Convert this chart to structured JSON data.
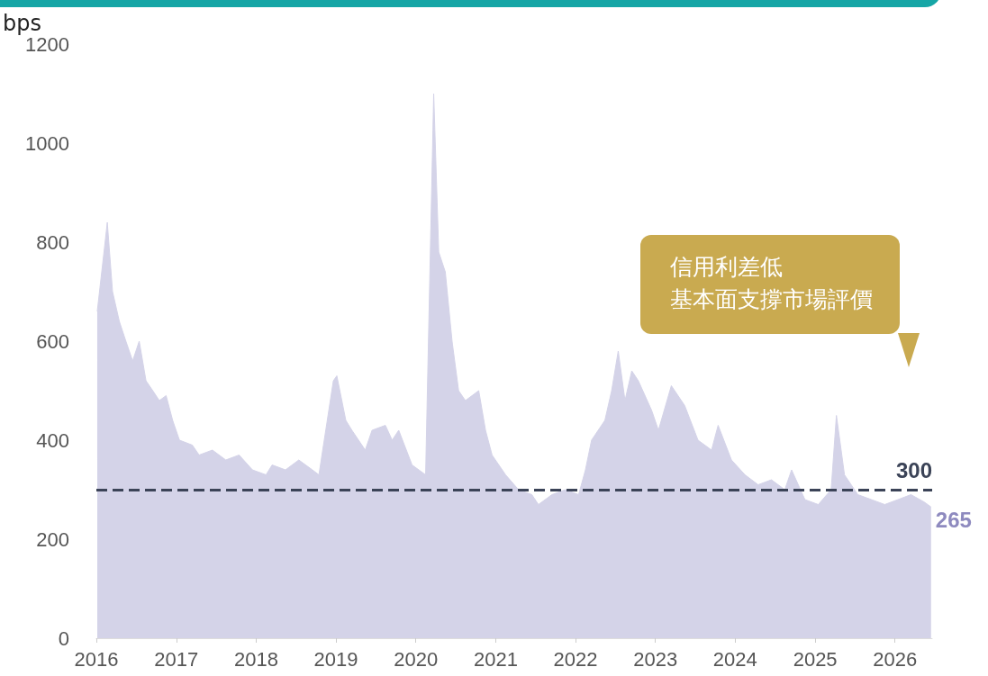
{
  "chart_data": {
    "type": "area",
    "ylabel": "bps",
    "annotations": [
      "信用利差低",
      "基本面支撐市場評價"
    ],
    "x": [
      "2016-01-05",
      "2016-02-10",
      "2016-02-20",
      "2016-03-15",
      "2016-04-15",
      "2016-05-15",
      "2016-06-15",
      "2016-07-15",
      "2016-08-15",
      "2016-09-15",
      "2016-10-15",
      "2016-11-15",
      "2016-12-15",
      "2017-01-15",
      "2017-03-15",
      "2017-04-15",
      "2017-06-15",
      "2017-08-15",
      "2017-10-15",
      "2017-12-15",
      "2018-02-15",
      "2018-03-15",
      "2018-05-15",
      "2018-07-15",
      "2018-09-15",
      "2018-10-15",
      "2018-12-20",
      "2019-01-05",
      "2019-02-15",
      "2019-03-15",
      "2019-05-15",
      "2019-06-15",
      "2019-08-15",
      "2019-09-15",
      "2019-10-15",
      "2019-12-15",
      "2020-01-15",
      "2020-02-15",
      "2020-03-23",
      "2020-04-15",
      "2020-05-15",
      "2020-06-15",
      "2020-07-15",
      "2020-08-15",
      "2020-10-15",
      "2020-11-15",
      "2020-12-15",
      "2021-02-15",
      "2021-04-15",
      "2021-06-15",
      "2021-07-15",
      "2021-09-15",
      "2021-11-15",
      "2022-01-15",
      "2022-02-15",
      "2022-03-15",
      "2022-05-15",
      "2022-06-15",
      "2022-07-15",
      "2022-08-15",
      "2022-09-15",
      "2022-10-15",
      "2022-12-15",
      "2023-01-15",
      "2023-03-15",
      "2023-05-15",
      "2023-07-15",
      "2023-09-15",
      "2023-10-15",
      "2023-12-15",
      "2024-02-15",
      "2024-04-15",
      "2024-06-15",
      "2024-08-15",
      "2024-09-15",
      "2024-11-15",
      "2025-01-15",
      "2025-03-15",
      "2025-04-08",
      "2025-05-15",
      "2025-07-15",
      "2025-09-15",
      "2025-11-15",
      "2026-01-15",
      "2026-03-15",
      "2026-05-15",
      "2026-06-15"
    ],
    "series": [
      {
        "color": "#d4d3e8",
        "values": [
          660,
          800,
          840,
          700,
          640,
          600,
          560,
          600,
          520,
          500,
          480,
          490,
          440,
          400,
          390,
          370,
          380,
          360,
          370,
          340,
          330,
          350,
          340,
          360,
          340,
          330,
          520,
          530,
          440,
          420,
          380,
          420,
          430,
          400,
          420,
          350,
          340,
          330,
          1100,
          780,
          740,
          600,
          500,
          480,
          500,
          420,
          370,
          330,
          300,
          290,
          270,
          290,
          300,
          290,
          340,
          400,
          440,
          500,
          580,
          480,
          540,
          520,
          460,
          420,
          510,
          470,
          400,
          380,
          430,
          360,
          330,
          310,
          320,
          300,
          340,
          280,
          270,
          300,
          450,
          330,
          290,
          280,
          270,
          280,
          290,
          275,
          265
        ],
        "value_labels": [
          null,
          null,
          null,
          null,
          null,
          null,
          null,
          null,
          null,
          null,
          null,
          null,
          null,
          null,
          null,
          null,
          null,
          null,
          null,
          null,
          null,
          null,
          null,
          null,
          null,
          null,
          null,
          null,
          null,
          null,
          null,
          null,
          null,
          null,
          null,
          null,
          null,
          null,
          null,
          null,
          null,
          null,
          null,
          null,
          null,
          null,
          null,
          null,
          null,
          null,
          null,
          null,
          null,
          null,
          null,
          null,
          null,
          null,
          null,
          null,
          null,
          null,
          null,
          null,
          null,
          null,
          null,
          null,
          null,
          null,
          null,
          null,
          null,
          null,
          null,
          null,
          null,
          null,
          null,
          null,
          null,
          null,
          null,
          null,
          null,
          null,
          "265"
        ]
      }
    ],
    "xlim": [
      "2016-01-01",
      "2026-06-20"
    ],
    "xticks": [
      "2016",
      "2017",
      "2018",
      "2019",
      "2020",
      "2021",
      "2022",
      "2023",
      "2024",
      "2025",
      "2026"
    ],
    "ylim": [
      0,
      1200
    ],
    "yticks": [
      0,
      200,
      400,
      600,
      800,
      1000,
      1200
    ],
    "ref_lines": [
      {
        "axis": "y",
        "value": 300,
        "label": "300",
        "color": "#3b4357",
        "line_style": "dashed"
      }
    ],
    "grid": false,
    "marker": "none"
  }
}
